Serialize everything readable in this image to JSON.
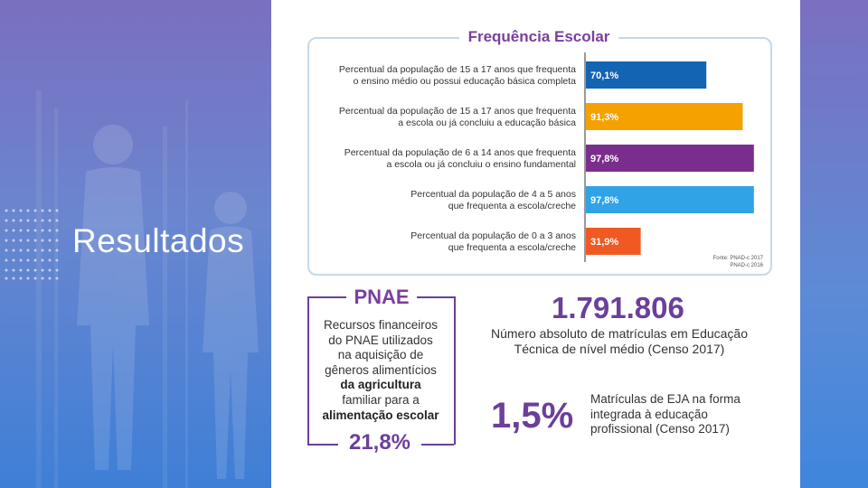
{
  "slide": {
    "title": "Resultados",
    "colors": {
      "accent_purple": "#6b3f9a",
      "bar_blue_dark": "#1464b4",
      "bar_orange": "#f5a100",
      "bar_purple": "#7b2d8e",
      "bar_blue_light": "#2fa3e6",
      "bar_red": "#f05a22"
    }
  },
  "chart_data": {
    "type": "bar",
    "orientation": "horizontal",
    "title": "Frequência Escolar",
    "categories": [
      [
        "Percentual da população de 15 a 17 anos que frequenta",
        "o ensino médio ou possui educação básica completa"
      ],
      [
        "Percentual da população de 15 a 17 anos que frequenta",
        "a escola ou já concluiu a educação básica"
      ],
      [
        "Percentual da população de 6 a 14 anos que frequenta",
        "a escola ou já concluiu o ensino fundamental"
      ],
      [
        "Percentual da população de 4 a 5 anos",
        "que frequenta a escola/creche"
      ],
      [
        "Percentual da população de 0 a 3 anos",
        "que frequenta a escola/creche"
      ]
    ],
    "values": [
      70.1,
      91.3,
      97.8,
      97.8,
      31.9
    ],
    "value_labels": [
      "70,1%",
      "91,3%",
      "97,8%",
      "97,8%",
      "31,9%"
    ],
    "bar_colors": [
      "#1464b4",
      "#f5a100",
      "#7b2d8e",
      "#2fa3e6",
      "#f05a22"
    ],
    "xlim": [
      0,
      100
    ],
    "source": [
      "Fonte: PNAD-c 2017",
      "PNAD-c 2016"
    ]
  },
  "pnae": {
    "title": "PNAE",
    "desc_lines": [
      "Recursos financeiros",
      "do PNAE utilizados",
      "na aquisição de",
      "gêneros alimentícios",
      "da agricultura",
      "familiar para a",
      "alimentação escolar"
    ],
    "value": "21,8%"
  },
  "enrollment": {
    "number": "1.791.806",
    "desc_line1": "Número absoluto de matrículas em Educação",
    "desc_line2": "Técnica de nível médio (Censo 2017)"
  },
  "eja": {
    "value": "1,5%",
    "desc_line1": "Matrículas de EJA na forma",
    "desc_line2": "integrada à educação",
    "desc_line3": "profissional (Censo 2017)"
  }
}
